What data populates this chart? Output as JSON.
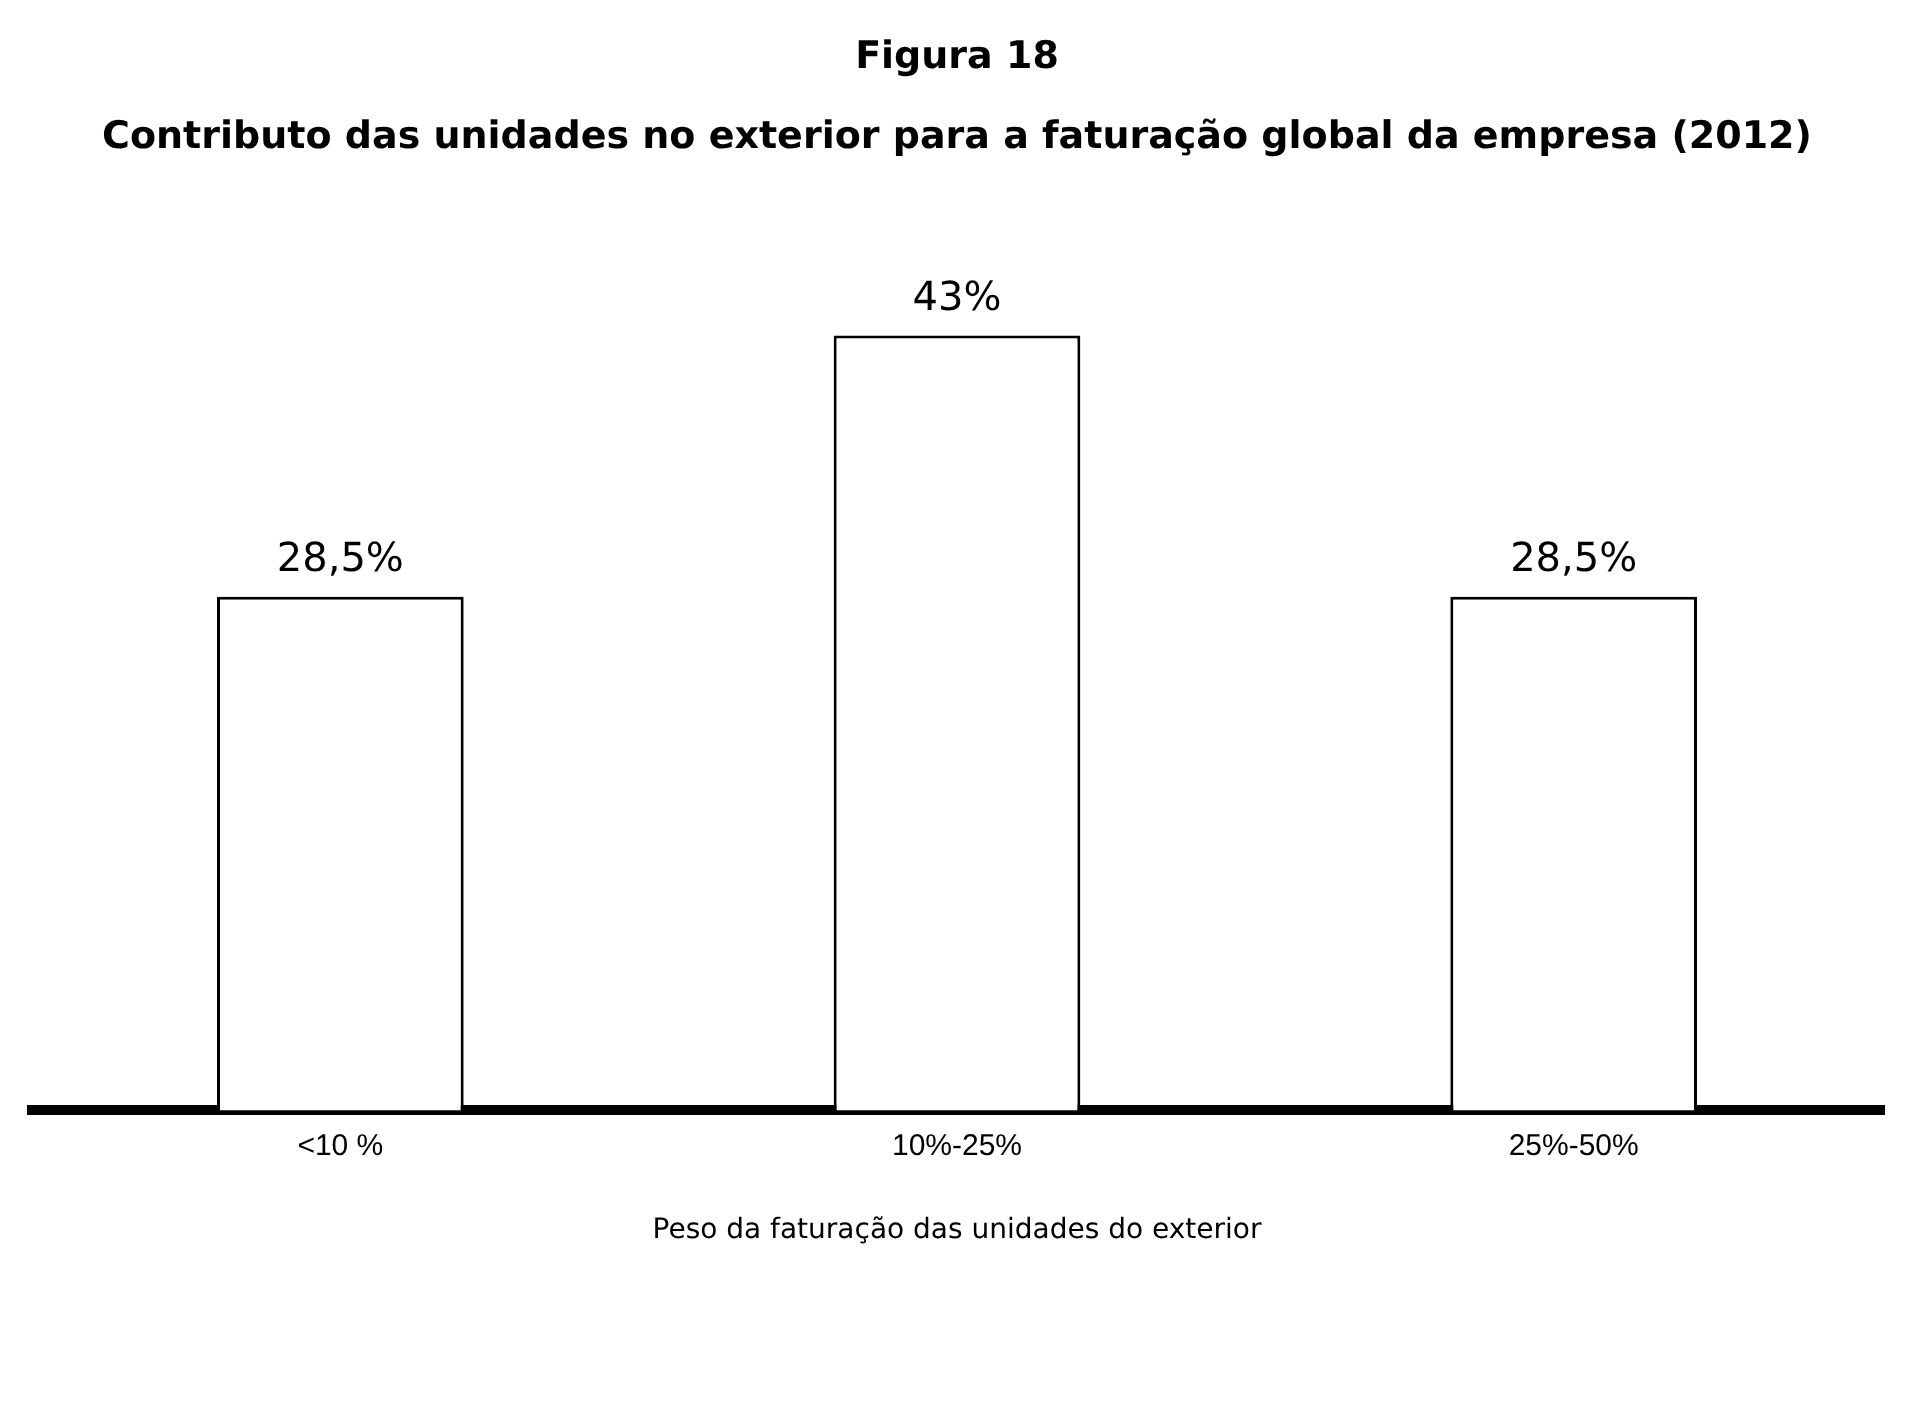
{
  "chart_data": {
    "type": "bar",
    "title": "Figura 18",
    "subtitle": "Contributo das unidades no exterior para a faturação global da empresa (2012)",
    "xlabel": "Peso da faturação das unidades do exterior",
    "categories": [
      "<10 %",
      "10%-25%",
      "25%-50%"
    ],
    "values": [
      28.5,
      43,
      28.5
    ],
    "value_labels": [
      "28,5%",
      "43%",
      "28,5%"
    ],
    "color": "#ffffff",
    "grid": false,
    "legend": false
  }
}
